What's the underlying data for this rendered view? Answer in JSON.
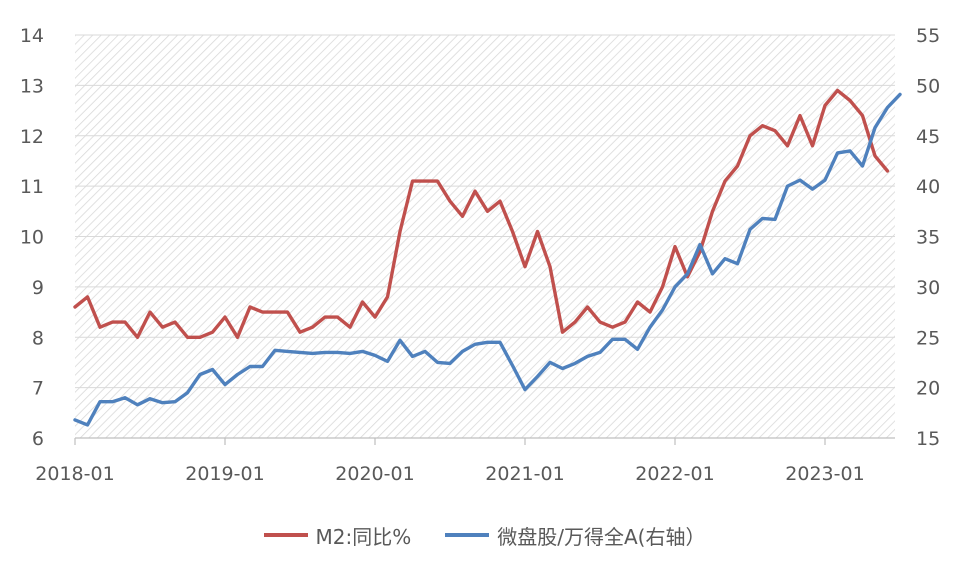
{
  "chart_data": {
    "type": "line",
    "x_tick_labels": [
      "2018-01",
      "2019-01",
      "2020-01",
      "2021-01",
      "2022-01",
      "2023-01"
    ],
    "y_left": {
      "range": [
        6,
        14
      ],
      "ticks": [
        "6",
        "7",
        "8",
        "9",
        "10",
        "11",
        "12",
        "13",
        "14"
      ]
    },
    "y_right": {
      "range": [
        15,
        55
      ],
      "ticks": [
        "15",
        "20",
        "25",
        "30",
        "35",
        "40",
        "45",
        "50",
        "55"
      ]
    },
    "grid": true,
    "legend_position": "bottom",
    "series": [
      {
        "name": "M2:同比%",
        "axis": "left",
        "color": "#c0504d",
        "start": "2018-01",
        "values": [
          8.6,
          8.8,
          8.2,
          8.3,
          8.3,
          8.0,
          8.5,
          8.2,
          8.3,
          8.0,
          8.0,
          8.1,
          8.4,
          8.0,
          8.6,
          8.5,
          8.5,
          8.5,
          8.1,
          8.2,
          8.4,
          8.4,
          8.2,
          8.7,
          8.4,
          8.8,
          10.1,
          11.1,
          11.1,
          11.1,
          10.7,
          10.4,
          10.9,
          10.5,
          10.7,
          10.1,
          9.4,
          10.1,
          9.4,
          8.1,
          8.3,
          8.6,
          8.3,
          8.2,
          8.3,
          8.7,
          8.5,
          9.0,
          9.8,
          9.2,
          9.7,
          10.5,
          11.1,
          11.4,
          12.0,
          12.2,
          12.1,
          11.8,
          12.4,
          11.8,
          12.6,
          12.9,
          12.7,
          12.4,
          11.6,
          11.3
        ]
      },
      {
        "name": "微盘股/万得全A(右轴）",
        "axis": "right",
        "color": "#4f81bd",
        "start": "2018-01",
        "values": [
          16.8,
          16.3,
          18.6,
          18.6,
          19.0,
          18.3,
          18.9,
          18.5,
          18.6,
          19.5,
          21.3,
          21.8,
          20.3,
          21.3,
          22.1,
          22.1,
          23.7,
          23.6,
          23.5,
          23.4,
          23.5,
          23.5,
          23.4,
          23.6,
          23.2,
          22.6,
          24.7,
          23.1,
          23.6,
          22.5,
          22.4,
          23.6,
          24.3,
          24.5,
          24.5,
          22.2,
          19.8,
          21.1,
          22.5,
          21.9,
          22.4,
          23.1,
          23.5,
          24.8,
          24.8,
          23.8,
          26.0,
          27.7,
          30.0,
          31.3,
          34.2,
          31.3,
          32.8,
          32.3,
          35.7,
          36.8,
          36.7,
          40.0,
          40.6,
          39.7,
          40.6,
          43.3,
          43.5,
          42.0,
          45.8,
          47.8,
          49.1
        ]
      }
    ]
  }
}
